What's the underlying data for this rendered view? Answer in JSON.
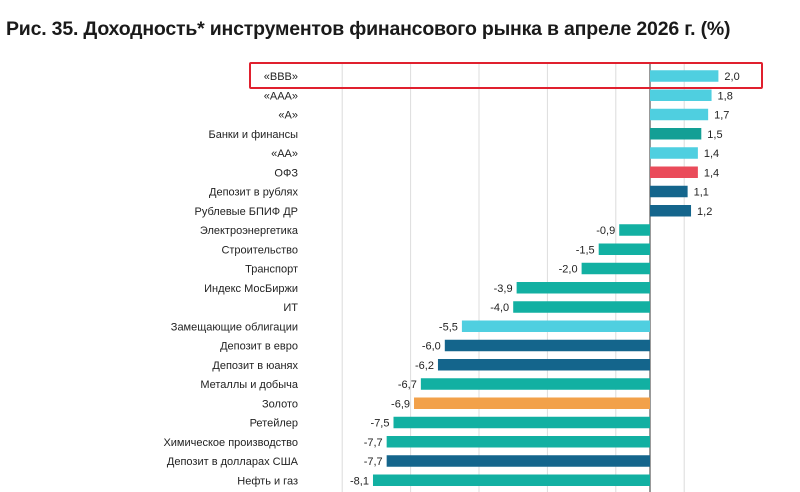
{
  "title": "Рис. 35. Доходность* инструментов финансового рынка в апреле 2026 г. (%)",
  "colors": {
    "light_blue": "#4fcfe0",
    "teal": "#12b0a2",
    "dark_teal": "#139f95",
    "navy": "#14658c",
    "red": "#ea4b5a",
    "orange": "#f2a14a",
    "highlight_box": "#e0202e",
    "grid": "#dcdcdc",
    "axis": "#555555"
  },
  "chart_data": {
    "type": "bar",
    "orientation": "horizontal",
    "title": "Рис. 35. Доходность* инструментов финансового рынка в апреле 2026 г. (%)",
    "xlim": [
      -9,
      2.3
    ],
    "grid": "vertical",
    "categories": [
      "«BBB»",
      "«AAA»",
      "«A»",
      "Банки и финансы",
      "«AA»",
      "ОФЗ",
      "Депозит в рублях",
      "Рублевые БПИФ ДР",
      "Электроэнергетика",
      "Строительство",
      "Транспорт",
      "Индекс МосБиржи",
      "ИТ",
      "Замещающие облигации",
      "Депозит в евро",
      "Депозит в юанях",
      "Металлы и добыча",
      "Золото",
      "Ретейлер",
      "Химическое производство",
      "Депозит в долларах США",
      "Нефть и газ"
    ],
    "values": [
      2.0,
      1.8,
      1.7,
      1.5,
      1.4,
      1.4,
      1.1,
      1.2,
      -0.9,
      -1.5,
      -2.0,
      -3.9,
      -4.0,
      -5.5,
      -6.0,
      -6.2,
      -6.7,
      -6.9,
      -7.5,
      -7.7,
      -7.7,
      -8.1
    ],
    "value_labels": [
      "2,0",
      "1,8",
      "1,7",
      "1,5",
      "1,4",
      "1,4",
      "1,1",
      "1,2",
      "-0,9",
      "-1,5",
      "-2,0",
      "-3,9",
      "-4,0",
      "-5,5",
      "-6,0",
      "-6,2",
      "-6,7",
      "-6,9",
      "-7,5",
      "-7,7",
      "-7,7",
      "-8,1"
    ],
    "bar_colors": [
      "light_blue",
      "light_blue",
      "light_blue",
      "dark_teal",
      "light_blue",
      "red",
      "navy",
      "navy",
      "teal",
      "teal",
      "teal",
      "teal",
      "teal",
      "light_blue",
      "navy",
      "navy",
      "teal",
      "orange",
      "teal",
      "teal",
      "navy",
      "teal"
    ],
    "highlighted_category": "«BBB»"
  }
}
